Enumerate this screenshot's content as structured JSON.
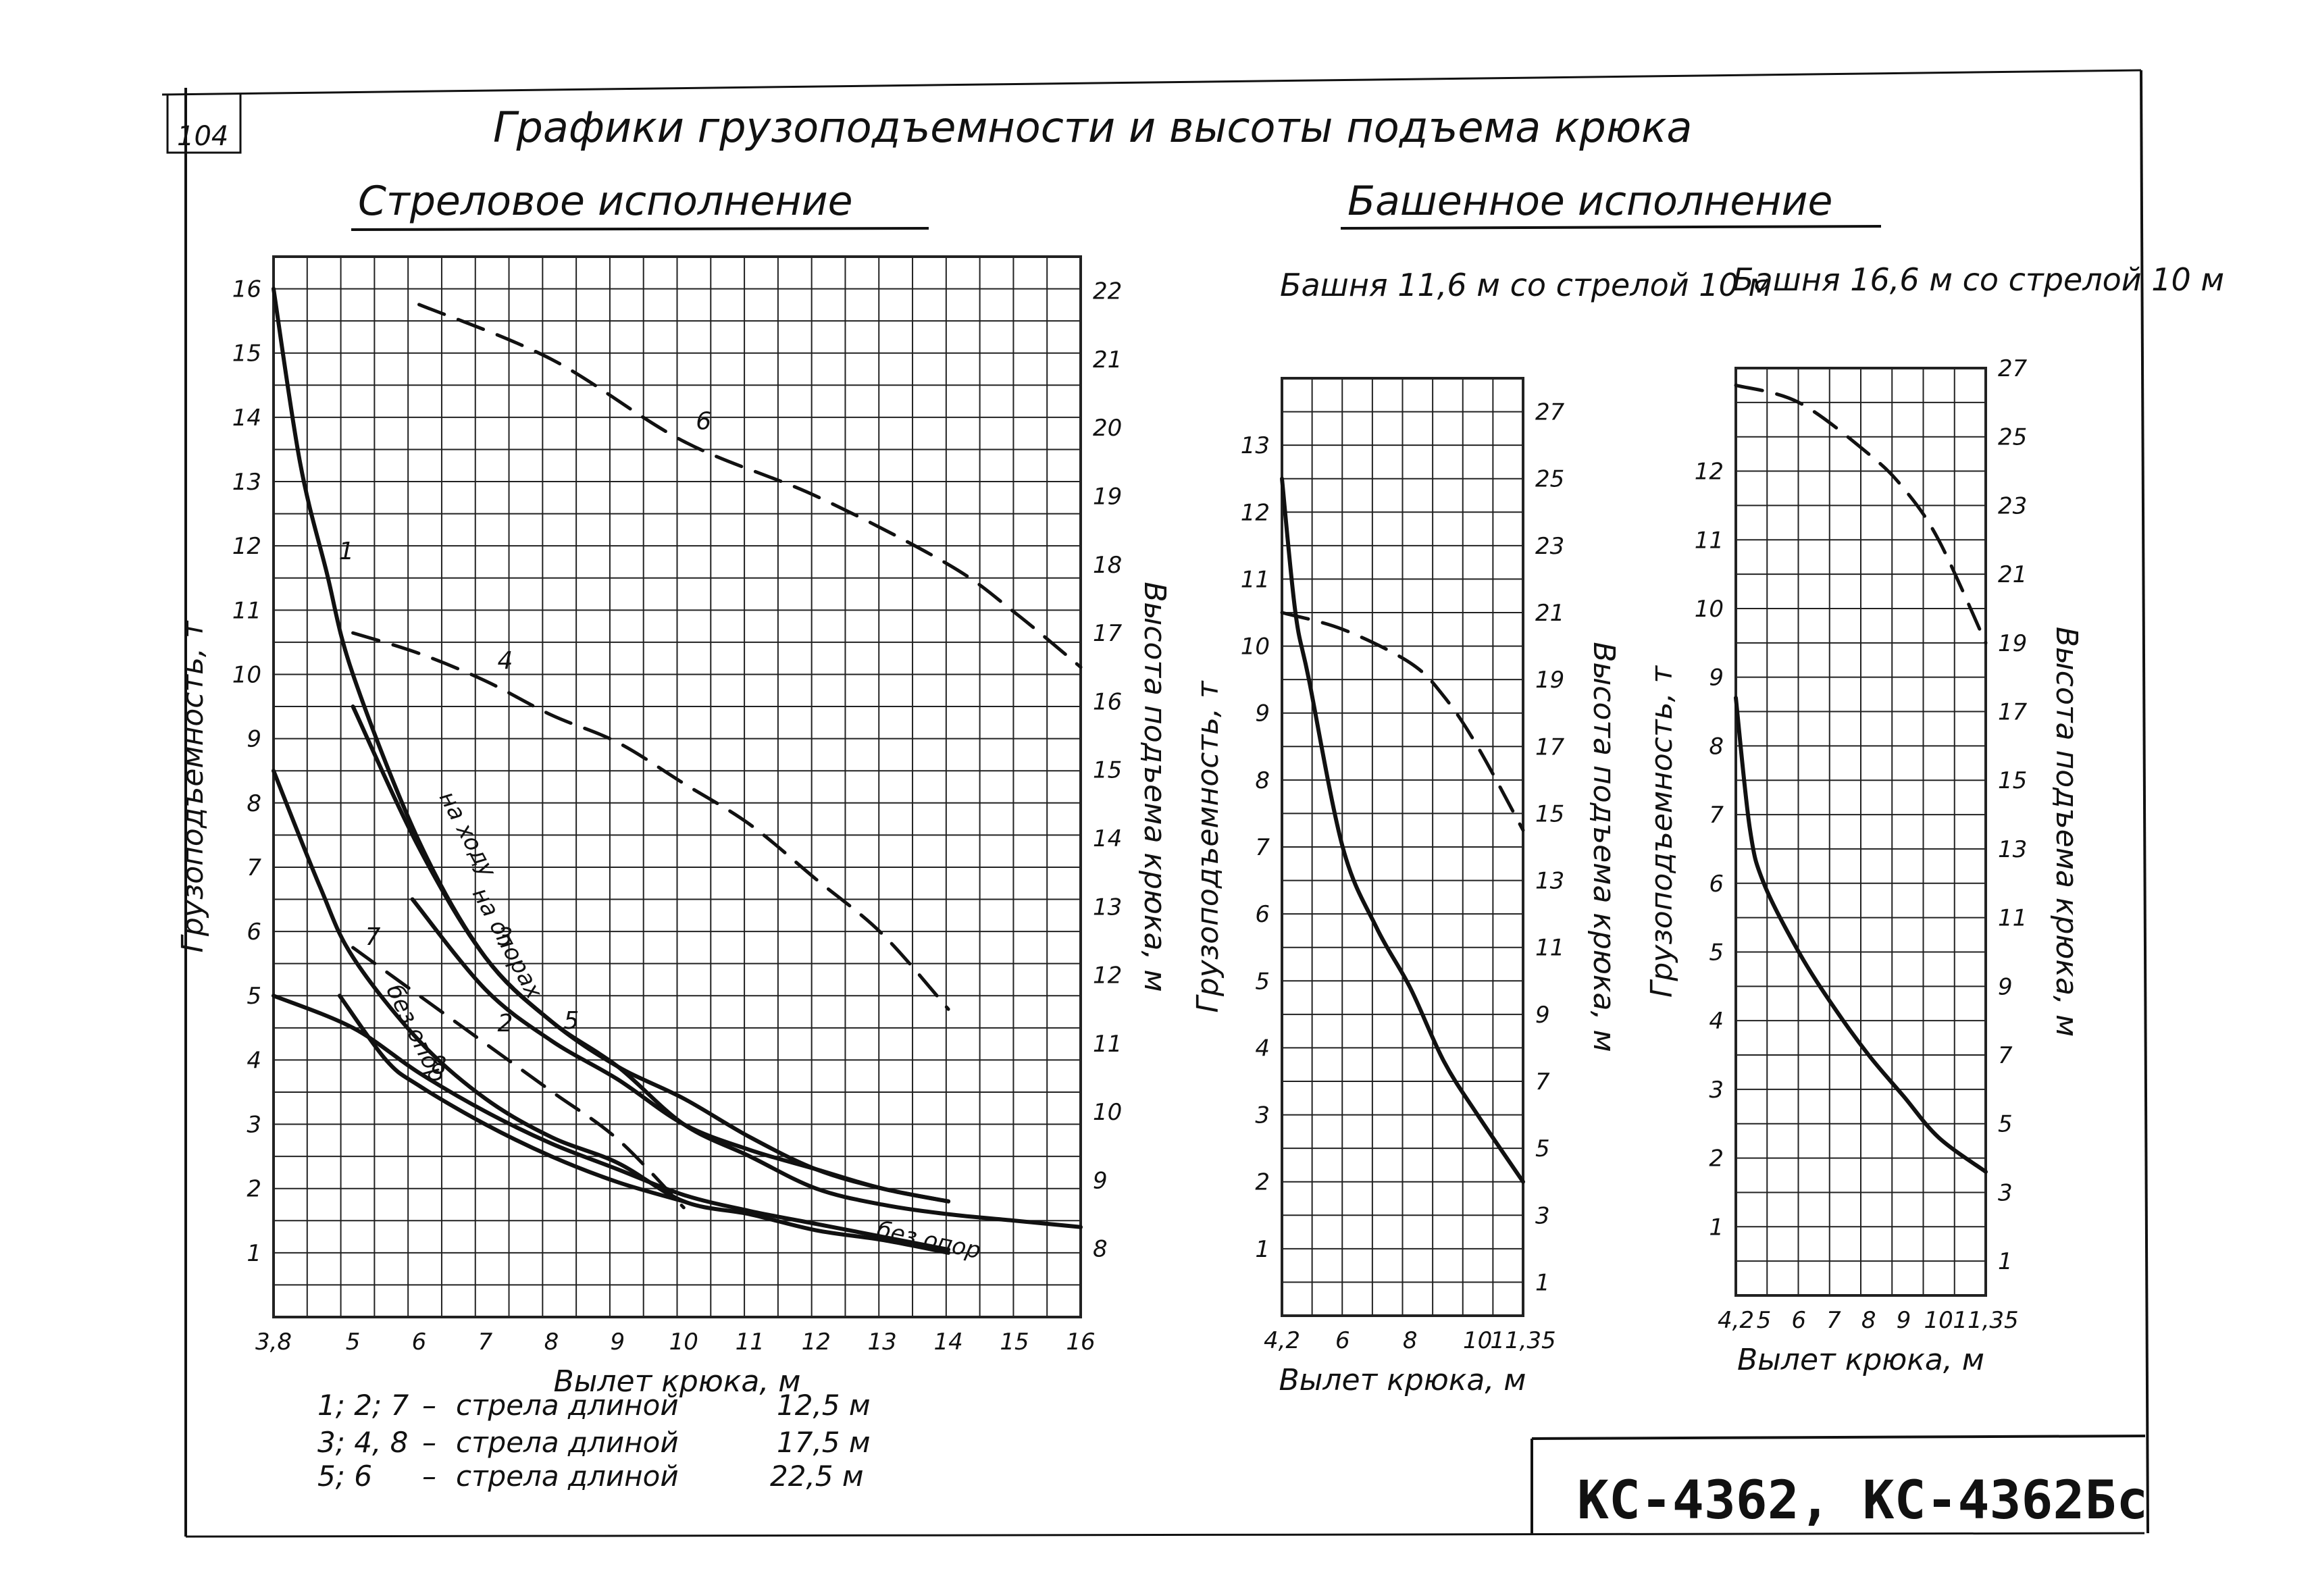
{
  "page": {
    "number": "104",
    "title": "Графики грузоподъемности и высоты подъема крюка",
    "section_boom": "Стреловое исполнение",
    "section_tower": "Башенное исполнение",
    "model": "КС-4362, КС-4362Бс"
  },
  "legend": [
    {
      "ids": "1; 2; 7",
      "dash": "–",
      "text": "стрела длиной",
      "value": "12,5 м"
    },
    {
      "ids": "3; 4, 8",
      "dash": "–",
      "text": "стрела длиной",
      "value": "17,5 м"
    },
    {
      "ids": "5; 6",
      "dash": "–",
      "text": "стрела длиной",
      "value": "22,5 м"
    }
  ],
  "chart_data": [
    {
      "type": "line",
      "title": "Стреловое исполнение",
      "xlabel": "Вылет крюка, м",
      "ylabel": "Грузоподъемность, т",
      "ylabel_right": "Высота подъема крюка, м",
      "xlim": [
        3.8,
        16
      ],
      "ylim": [
        0,
        16.5
      ],
      "y2lim": [
        7,
        22.5
      ],
      "x_ticks": [
        "3,8",
        "5",
        "6",
        "7",
        "8",
        "9",
        "10",
        "11",
        "12",
        "13",
        "14",
        "15",
        "16"
      ],
      "y_ticks": [
        "1",
        "2",
        "3",
        "4",
        "5",
        "6",
        "7",
        "8",
        "9",
        "10",
        "11",
        "12",
        "13",
        "14",
        "15",
        "16"
      ],
      "y2_ticks": [
        "8",
        "9",
        "10",
        "11",
        "12",
        "13",
        "14",
        "15",
        "16",
        "17",
        "18",
        "19",
        "20",
        "21",
        "22"
      ],
      "grid": true,
      "annotations": [
        "на опорах",
        "без опор",
        "на ходу",
        "без опор"
      ],
      "series": [
        {
          "name": "1",
          "axis": "left",
          "style": "solid",
          "x": [
            3.8,
            4.2,
            4.6,
            5.0,
            6.0,
            7.0,
            8.0,
            9.0,
            10.0,
            11.0,
            12.0,
            13.0,
            14.0,
            15.0,
            16.0
          ],
          "y": [
            16.0,
            13.3,
            11.6,
            10.0,
            7.4,
            5.6,
            4.6,
            3.9,
            3.0,
            2.5,
            2.0,
            1.75,
            1.6,
            1.5,
            1.4
          ]
        },
        {
          "name": "3",
          "axis": "left",
          "style": "solid",
          "x": [
            5.0,
            6.0,
            7.0,
            8.0,
            9.0,
            10.0,
            11.0,
            12.0,
            13.0,
            14.0
          ],
          "y": [
            9.5,
            7.3,
            5.6,
            4.6,
            3.9,
            3.4,
            2.8,
            2.3,
            2.0,
            1.8
          ]
        },
        {
          "name": "5",
          "axis": "left",
          "style": "solid",
          "x": [
            5.9,
            7.0,
            8.0,
            9.0,
            10.0,
            11.0,
            12.0,
            13.0,
            14.0
          ],
          "y": [
            6.5,
            5.1,
            4.3,
            3.7,
            3.0,
            2.6,
            2.3,
            2.0,
            1.8
          ]
        },
        {
          "name": "7",
          "axis": "left",
          "style": "solid",
          "x": [
            3.8,
            4.5,
            5.0,
            6.0,
            7.0,
            8.0,
            9.0,
            10.0,
            11.0,
            12.0,
            13.0,
            14.0
          ],
          "y": [
            8.5,
            6.7,
            5.6,
            4.3,
            3.4,
            2.8,
            2.4,
            1.8,
            1.6,
            1.35,
            1.2,
            1.0
          ]
        },
        {
          "name": "8",
          "axis": "left",
          "style": "solid",
          "x": [
            4.8,
            5.5,
            6.0,
            7.0,
            8.0,
            9.0,
            10.0
          ],
          "y": [
            5.0,
            4.0,
            3.6,
            3.0,
            2.5,
            2.1,
            1.8
          ]
        },
        {
          "name": "без опор",
          "axis": "left",
          "style": "solid",
          "x": [
            3.8,
            5.0,
            6.0,
            7.0,
            8.0,
            9.0,
            10.0,
            11.0,
            12.0,
            13.0,
            14.0
          ],
          "y": [
            5.0,
            4.5,
            3.8,
            3.2,
            2.7,
            2.3,
            1.9,
            1.65,
            1.45,
            1.25,
            1.05
          ]
        },
        {
          "name": "2",
          "axis": "right",
          "style": "dashed",
          "x": [
            5.0,
            6.0,
            7.0,
            8.0,
            9.0,
            10.0
          ],
          "y": [
            12.4,
            11.7,
            11.0,
            10.3,
            9.6,
            8.6
          ]
        },
        {
          "name": "4",
          "axis": "right",
          "style": "dashed",
          "x": [
            5.0,
            6.0,
            7.0,
            8.0,
            9.0,
            10.0,
            11.0,
            12.0,
            13.0,
            14.0
          ],
          "y": [
            17.0,
            16.7,
            16.3,
            15.8,
            15.4,
            14.8,
            14.2,
            13.4,
            12.6,
            11.5
          ]
        },
        {
          "name": "6",
          "axis": "right",
          "style": "dashed",
          "x": [
            6.0,
            8.0,
            10.0,
            12.0,
            14.0,
            15.0,
            16.0
          ],
          "y": [
            21.8,
            21.0,
            19.8,
            19.0,
            18.0,
            17.3,
            16.5
          ]
        }
      ]
    },
    {
      "type": "line",
      "title": "Башня 11,6 м со стрелой 10 м",
      "xlabel": "Вылет крюка, м",
      "ylabel": "Грузоподъемность, т",
      "ylabel_right": "Высота подъема крюка, м",
      "xlim": [
        4.2,
        11.35
      ],
      "ylim": [
        0,
        14
      ],
      "y2lim": [
        0,
        28
      ],
      "x_ticks": [
        "4,2",
        "6",
        "8",
        "10",
        "11,35"
      ],
      "y_ticks": [
        "1",
        "2",
        "3",
        "4",
        "5",
        "6",
        "7",
        "8",
        "9",
        "10",
        "11",
        "12",
        "13"
      ],
      "y2_ticks": [
        "1",
        "3",
        "5",
        "7",
        "9",
        "11",
        "13",
        "15",
        "17",
        "19",
        "21",
        "23",
        "25",
        "27"
      ],
      "grid": true,
      "series": [
        {
          "name": "грузоподъемность",
          "axis": "left",
          "style": "solid",
          "x": [
            4.2,
            4.6,
            5.0,
            6.0,
            7.0,
            8.0,
            9.0,
            10.0,
            11.35
          ],
          "y": [
            12.5,
            10.5,
            9.5,
            7.0,
            5.8,
            4.9,
            3.8,
            3.0,
            2.0
          ]
        },
        {
          "name": "высота подъема",
          "axis": "right",
          "style": "dashed",
          "x": [
            4.2,
            6.0,
            8.0,
            9.0,
            10.0,
            11.35
          ],
          "y": [
            21.0,
            20.5,
            19.5,
            18.5,
            17.0,
            14.5
          ]
        }
      ]
    },
    {
      "type": "line",
      "title": "Башня 16,6 м со стрелой 10 м",
      "xlabel": "Вылет крюка, м",
      "ylabel": "Грузоподъемность, т",
      "ylabel_right": "Высота подъема крюка, м",
      "xlim": [
        4.2,
        11.35
      ],
      "ylim": [
        0,
        13.5
      ],
      "y2lim": [
        0,
        27
      ],
      "x_ticks": [
        "4,2",
        "5",
        "6",
        "7",
        "8",
        "9",
        "10",
        "11,35"
      ],
      "y_ticks": [
        "1",
        "2",
        "3",
        "4",
        "5",
        "6",
        "7",
        "8",
        "9",
        "10",
        "11",
        "12"
      ],
      "y2_ticks": [
        "1",
        "3",
        "5",
        "7",
        "9",
        "11",
        "13",
        "15",
        "17",
        "19",
        "21",
        "23",
        "25",
        "27"
      ],
      "grid": true,
      "series": [
        {
          "name": "грузоподъемность",
          "axis": "left",
          "style": "solid",
          "x": [
            4.2,
            4.6,
            5.0,
            6.0,
            7.0,
            8.0,
            9.0,
            10.0,
            11.35
          ],
          "y": [
            8.7,
            6.8,
            6.0,
            5.0,
            4.2,
            3.5,
            2.9,
            2.3,
            1.8
          ]
        },
        {
          "name": "высота подъема",
          "axis": "right",
          "style": "dashed",
          "x": [
            4.2,
            6.0,
            8.0,
            9.0,
            10.0,
            11.35
          ],
          "y": [
            26.5,
            26.0,
            24.5,
            23.5,
            22.0,
            19.0
          ]
        }
      ]
    }
  ]
}
